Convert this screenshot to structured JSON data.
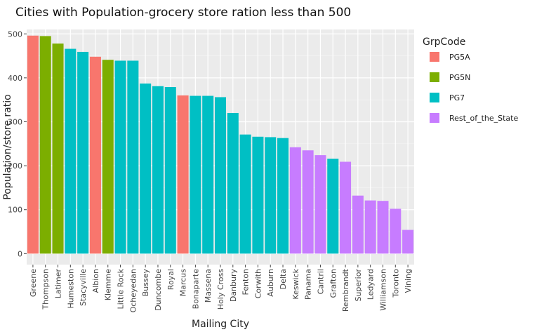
{
  "chart_data": {
    "type": "bar",
    "title": "Cities with Population-grocery store ration less than 500",
    "xlabel": "Mailing City",
    "ylabel": "Population/store ratio",
    "ylim": [
      0,
      510
    ],
    "yticks": [
      0,
      100,
      200,
      300,
      400,
      500
    ],
    "grid": true,
    "legend": {
      "title": "GrpCode",
      "placement": "right",
      "entries": [
        {
          "name": "PG5A",
          "color": "#F8766D"
        },
        {
          "name": "PG5N",
          "color": "#7CAE00"
        },
        {
          "name": "PG7",
          "color": "#00BFC4"
        },
        {
          "name": "Rest_of_the_State",
          "color": "#C77CFF"
        }
      ]
    },
    "categories": [
      "Greene",
      "Thompson",
      "Latimer",
      "Humeston",
      "Stacyville",
      "Albion",
      "Klemme",
      "Little Rock",
      "Ocheyedan",
      "Bussey",
      "Duncombe",
      "Royal",
      "Marcus",
      "Bonaparte",
      "Massena",
      "Holy Cross",
      "Danbury",
      "Fenton",
      "Corwith",
      "Auburn",
      "Delta",
      "Keswick",
      "Panama",
      "Cantril",
      "Grafton",
      "Rembrandt",
      "Superior",
      "Ledyard",
      "Williamson",
      "Toronto",
      "Vining"
    ],
    "values": [
      496,
      495,
      478,
      466,
      459,
      448,
      441,
      439,
      439,
      387,
      381,
      379,
      360,
      359,
      359,
      356,
      320,
      271,
      266,
      265,
      263,
      242,
      235,
      224,
      216,
      209,
      132,
      121,
      120,
      102,
      54
    ],
    "groups": [
      "PG5A",
      "PG5N",
      "PG5N",
      "PG7",
      "PG7",
      "PG5A",
      "PG5N",
      "PG7",
      "PG7",
      "PG7",
      "PG7",
      "PG7",
      "PG5A",
      "PG7",
      "PG7",
      "PG7",
      "PG7",
      "PG7",
      "PG7",
      "PG7",
      "PG7",
      "Rest_of_the_State",
      "Rest_of_the_State",
      "Rest_of_the_State",
      "PG7",
      "Rest_of_the_State",
      "Rest_of_the_State",
      "Rest_of_the_State",
      "Rest_of_the_State",
      "Rest_of_the_State",
      "Rest_of_the_State"
    ]
  }
}
